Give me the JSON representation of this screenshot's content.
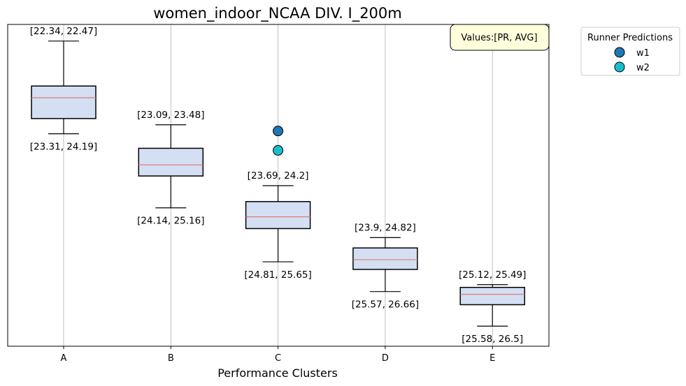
{
  "chart_data": {
    "type": "box",
    "title": "women_indoor_NCAA DIV. I_200m",
    "xlabel": "Performance Clusters",
    "ylabel": "",
    "y_inverted": true,
    "ylim": [
      22.1,
      26.75
    ],
    "grid": "x",
    "categories": [
      "A",
      "B",
      "C",
      "D",
      "E"
    ],
    "boxes": [
      {
        "category": "A",
        "whisker_low": 22.34,
        "q1": 22.99,
        "median": 23.16,
        "q3": 23.46,
        "whisker_high": 23.68,
        "top_label": "[22.34, 22.47]",
        "bottom_label": "[23.31, 24.19]"
      },
      {
        "category": "B",
        "whisker_low": 23.55,
        "q1": 23.89,
        "median": 24.13,
        "q3": 24.29,
        "whisker_high": 24.75,
        "top_label": "[23.09, 23.48]",
        "bottom_label": "[24.14, 25.16]"
      },
      {
        "category": "C",
        "whisker_low": 24.43,
        "q1": 24.66,
        "median": 24.88,
        "q3": 25.05,
        "whisker_high": 25.53,
        "top_label": "[23.69, 24.2]",
        "bottom_label": "[24.81, 25.65]"
      },
      {
        "category": "D",
        "whisker_low": 25.18,
        "q1": 25.33,
        "median": 25.5,
        "q3": 25.64,
        "whisker_high": 25.96,
        "top_label": "[23.9, 24.82]",
        "bottom_label": "[25.57, 26.66]"
      },
      {
        "category": "E",
        "whisker_low": 25.86,
        "q1": 25.9,
        "median": 26.0,
        "q3": 26.15,
        "whisker_high": 26.46,
        "top_label": "[25.12, 25.49]",
        "bottom_label": "[25.58, 26.5]"
      }
    ],
    "runners": [
      {
        "name": "w1",
        "category": "C",
        "value": 23.64,
        "color": "#1f77b4"
      },
      {
        "name": "w2",
        "category": "C",
        "value": 23.92,
        "color": "#17becf"
      }
    ],
    "legend": {
      "title": "Runner Predictions",
      "placement": "outside-top-right"
    },
    "annotation": "Values:[PR, AVG]",
    "colors": {
      "box_fill": "#d4dff4",
      "box_edge": "#000000",
      "median": "#e07b6e",
      "grid": "#b0b0b0",
      "note_fill": "#ffffdc"
    }
  }
}
